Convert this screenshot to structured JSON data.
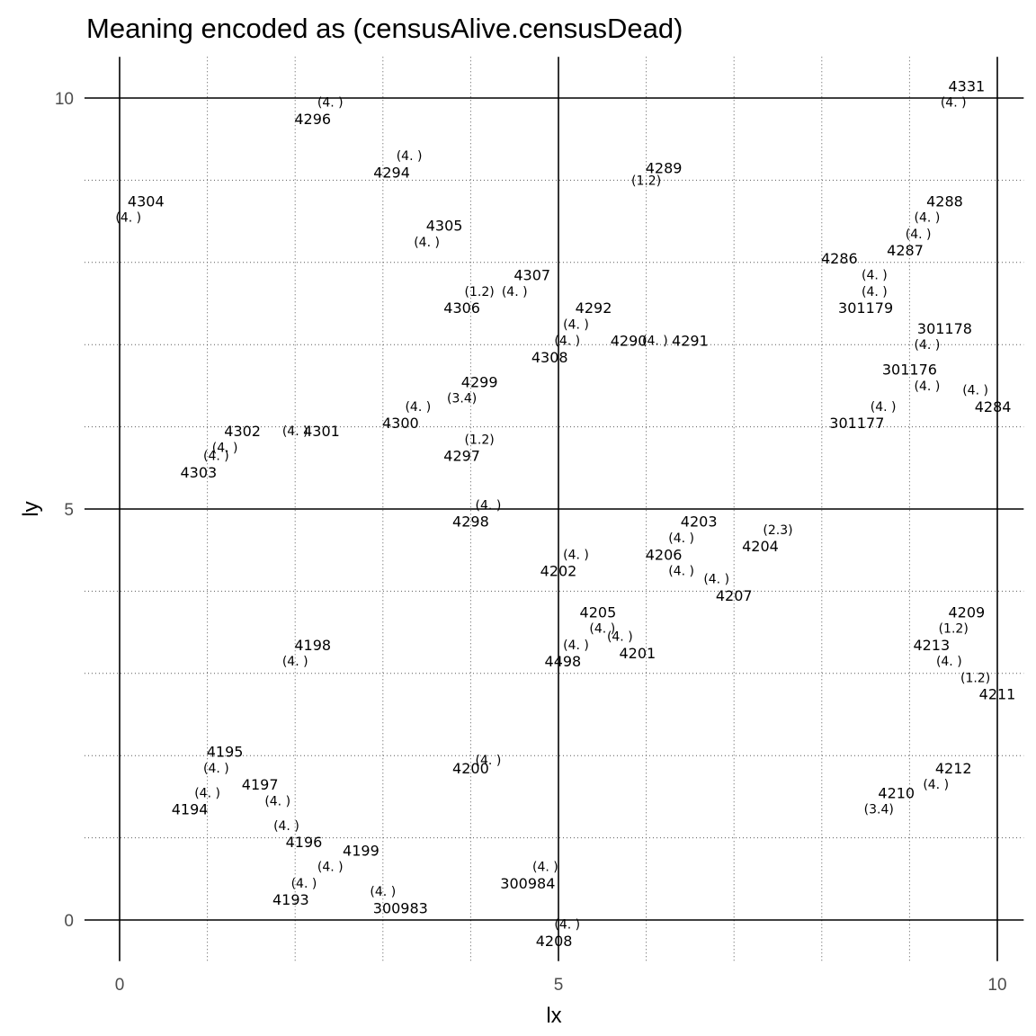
{
  "chart_data": {
    "type": "scatter",
    "title": "Meaning encoded as (censusAlive.censusDead)",
    "xlabel": "lx",
    "ylabel": "ly",
    "xlim": [
      -0.4,
      10.3
    ],
    "ylim": [
      -0.5,
      10.5
    ],
    "x_ticks": [
      0,
      5,
      10
    ],
    "y_ticks": [
      0,
      5,
      10
    ],
    "x_tick_labels": [
      "0",
      "5",
      "10"
    ],
    "y_tick_labels": [
      "0",
      "5",
      "10"
    ],
    "grid": true,
    "reference_lines_x": [
      0,
      5,
      10
    ],
    "reference_lines_y": [
      0,
      5,
      10
    ],
    "points": [
      {
        "id": "4331",
        "x": 9.65,
        "y": 10.15,
        "meaning": "(4. )",
        "mx": 9.5,
        "my": 9.95
      },
      {
        "id": "4296",
        "x": 2.2,
        "y": 9.75,
        "meaning": "(4. )",
        "mx": 2.4,
        "my": 9.95
      },
      {
        "id": "4294",
        "x": 3.1,
        "y": 9.1,
        "meaning": "(4. )",
        "mx": 3.3,
        "my": 9.3
      },
      {
        "id": "4289",
        "x": 6.2,
        "y": 9.15,
        "meaning": "(1.2)",
        "mx": 6.0,
        "my": 9.0
      },
      {
        "id": "4304",
        "x": 0.3,
        "y": 8.75,
        "meaning": "(4. )",
        "mx": 0.1,
        "my": 8.55
      },
      {
        "id": "4288",
        "x": 9.4,
        "y": 8.75,
        "meaning": "(4. )",
        "mx": 9.2,
        "my": 8.55
      },
      {
        "id": "4305",
        "x": 3.7,
        "y": 8.45,
        "meaning": "(4. )",
        "mx": 3.5,
        "my": 8.25
      },
      {
        "id": "4287",
        "x": 8.95,
        "y": 8.15,
        "meaning": "(4. )",
        "mx": 9.1,
        "my": 8.35
      },
      {
        "id": "4286",
        "x": 8.2,
        "y": 8.05,
        "meaning": "(4. )",
        "mx": 8.6,
        "my": 7.85
      },
      {
        "id": "4307",
        "x": 4.7,
        "y": 7.85,
        "meaning": "(4. )",
        "mx": 4.5,
        "my": 7.65
      },
      {
        "id": "301179",
        "x": 8.5,
        "y": 7.45,
        "meaning": "(4. )",
        "mx": 8.6,
        "my": 7.65
      },
      {
        "id": "4306",
        "x": 3.9,
        "y": 7.45,
        "meaning": "(1.2)",
        "mx": 4.1,
        "my": 7.65
      },
      {
        "id": "4292",
        "x": 5.4,
        "y": 7.45,
        "meaning": "(4. )",
        "mx": 5.2,
        "my": 7.25
      },
      {
        "id": "301178",
        "x": 9.4,
        "y": 7.2,
        "meaning": "(4. )",
        "mx": 9.2,
        "my": 7.0
      },
      {
        "id": "4290",
        "x": 5.8,
        "y": 7.05,
        "meaning": "(4. )",
        "mx": 6.1,
        "my": 7.05
      },
      {
        "id": "4291",
        "x": 6.5,
        "y": 7.05,
        "meaning": "(4. )",
        "mx": 5.1,
        "my": 7.05
      },
      {
        "id": "4308",
        "x": 4.9,
        "y": 6.85,
        "meaning": "",
        "mx": 0,
        "my": 0
      },
      {
        "id": "301176",
        "x": 9.0,
        "y": 6.7,
        "meaning": "(4. )",
        "mx": 9.2,
        "my": 6.5
      },
      {
        "id": "4299",
        "x": 4.1,
        "y": 6.55,
        "meaning": "(3.4)",
        "mx": 3.9,
        "my": 6.35
      },
      {
        "id": "4300",
        "x": 3.2,
        "y": 6.05,
        "meaning": "(4. )",
        "mx": 3.4,
        "my": 6.25
      },
      {
        "id": "301177",
        "x": 8.4,
        "y": 6.05,
        "meaning": "(4. )",
        "mx": 8.7,
        "my": 6.25
      },
      {
        "id": "4284",
        "x": 9.95,
        "y": 6.25,
        "meaning": "(4. )",
        "mx": 9.75,
        "my": 6.45
      },
      {
        "id": "4302",
        "x": 1.4,
        "y": 5.95,
        "meaning": "(4. )",
        "mx": 1.2,
        "my": 5.75
      },
      {
        "id": "4301",
        "x": 2.3,
        "y": 5.95,
        "meaning": "(4. )",
        "mx": 2.0,
        "my": 5.95
      },
      {
        "id": "4297",
        "x": 3.9,
        "y": 5.65,
        "meaning": "(1.2)",
        "mx": 4.1,
        "my": 5.85
      },
      {
        "id": "4303",
        "x": 0.9,
        "y": 5.45,
        "meaning": "(4. )",
        "mx": 1.1,
        "my": 5.65
      },
      {
        "id": "4298",
        "x": 4.0,
        "y": 4.85,
        "meaning": "(4. )",
        "mx": 4.2,
        "my": 5.05
      },
      {
        "id": "4203",
        "x": 6.6,
        "y": 4.85,
        "meaning": "(4. )",
        "mx": 6.4,
        "my": 4.65
      },
      {
        "id": "4204",
        "x": 7.3,
        "y": 4.55,
        "meaning": "(2.3)",
        "mx": 7.5,
        "my": 4.75
      },
      {
        "id": "4206",
        "x": 6.2,
        "y": 4.45,
        "meaning": "(4. )",
        "mx": 6.4,
        "my": 4.25
      },
      {
        "id": "4202",
        "x": 5.0,
        "y": 4.25,
        "meaning": "(4. )",
        "mx": 5.2,
        "my": 4.45
      },
      {
        "id": "4207",
        "x": 7.0,
        "y": 3.95,
        "meaning": "(4. )",
        "mx": 6.8,
        "my": 4.15
      },
      {
        "id": "4205",
        "x": 5.45,
        "y": 3.75,
        "meaning": "(4. )",
        "mx": 5.5,
        "my": 3.55
      },
      {
        "id": "4209",
        "x": 9.65,
        "y": 3.75,
        "meaning": "(1.2)",
        "mx": 9.5,
        "my": 3.55
      },
      {
        "id": "4201",
        "x": 5.9,
        "y": 3.25,
        "meaning": "(4. )",
        "mx": 5.7,
        "my": 3.45
      },
      {
        "id": "4213",
        "x": 9.25,
        "y": 3.35,
        "meaning": "(4. )",
        "mx": 9.45,
        "my": 3.15
      },
      {
        "id": "4198",
        "x": 2.2,
        "y": 3.35,
        "meaning": "(4. )",
        "mx": 2.0,
        "my": 3.15
      },
      {
        "id": "4498",
        "x": 5.05,
        "y": 3.15,
        "meaning": "(4. )",
        "mx": 5.2,
        "my": 3.35
      },
      {
        "id": "4211",
        "x": 10.0,
        "y": 2.75,
        "meaning": "(1.2)",
        "mx": 9.75,
        "my": 2.95
      },
      {
        "id": "4195",
        "x": 1.2,
        "y": 2.05,
        "meaning": "(4. )",
        "mx": 1.1,
        "my": 1.85
      },
      {
        "id": "4200",
        "x": 4.0,
        "y": 1.85,
        "meaning": "(4. )",
        "mx": 4.2,
        "my": 1.95
      },
      {
        "id": "4212",
        "x": 9.5,
        "y": 1.85,
        "meaning": "(4. )",
        "mx": 9.3,
        "my": 1.65
      },
      {
        "id": "4197",
        "x": 1.6,
        "y": 1.65,
        "meaning": "(4. )",
        "mx": 1.8,
        "my": 1.45
      },
      {
        "id": "4194",
        "x": 0.8,
        "y": 1.35,
        "meaning": "(4. )",
        "mx": 1.0,
        "my": 1.55
      },
      {
        "id": "4210",
        "x": 8.85,
        "y": 1.55,
        "meaning": "(3.4)",
        "mx": 8.65,
        "my": 1.35
      },
      {
        "id": "4196",
        "x": 2.1,
        "y": 0.95,
        "meaning": "(4. )",
        "mx": 1.9,
        "my": 1.15
      },
      {
        "id": "4199",
        "x": 2.75,
        "y": 0.85,
        "meaning": "(4. )",
        "mx": 2.4,
        "my": 0.65
      },
      {
        "id": "300984",
        "x": 4.65,
        "y": 0.45,
        "meaning": "(4. )",
        "mx": 4.85,
        "my": 0.65
      },
      {
        "id": "4193",
        "x": 1.95,
        "y": 0.25,
        "meaning": "(4. )",
        "mx": 2.1,
        "my": 0.45
      },
      {
        "id": "300983",
        "x": 3.2,
        "y": 0.15,
        "meaning": "(4. )",
        "mx": 3.0,
        "my": 0.35
      },
      {
        "id": "4208",
        "x": 4.95,
        "y": -0.25,
        "meaning": "(4. )",
        "mx": 5.1,
        "my": -0.05
      }
    ]
  }
}
